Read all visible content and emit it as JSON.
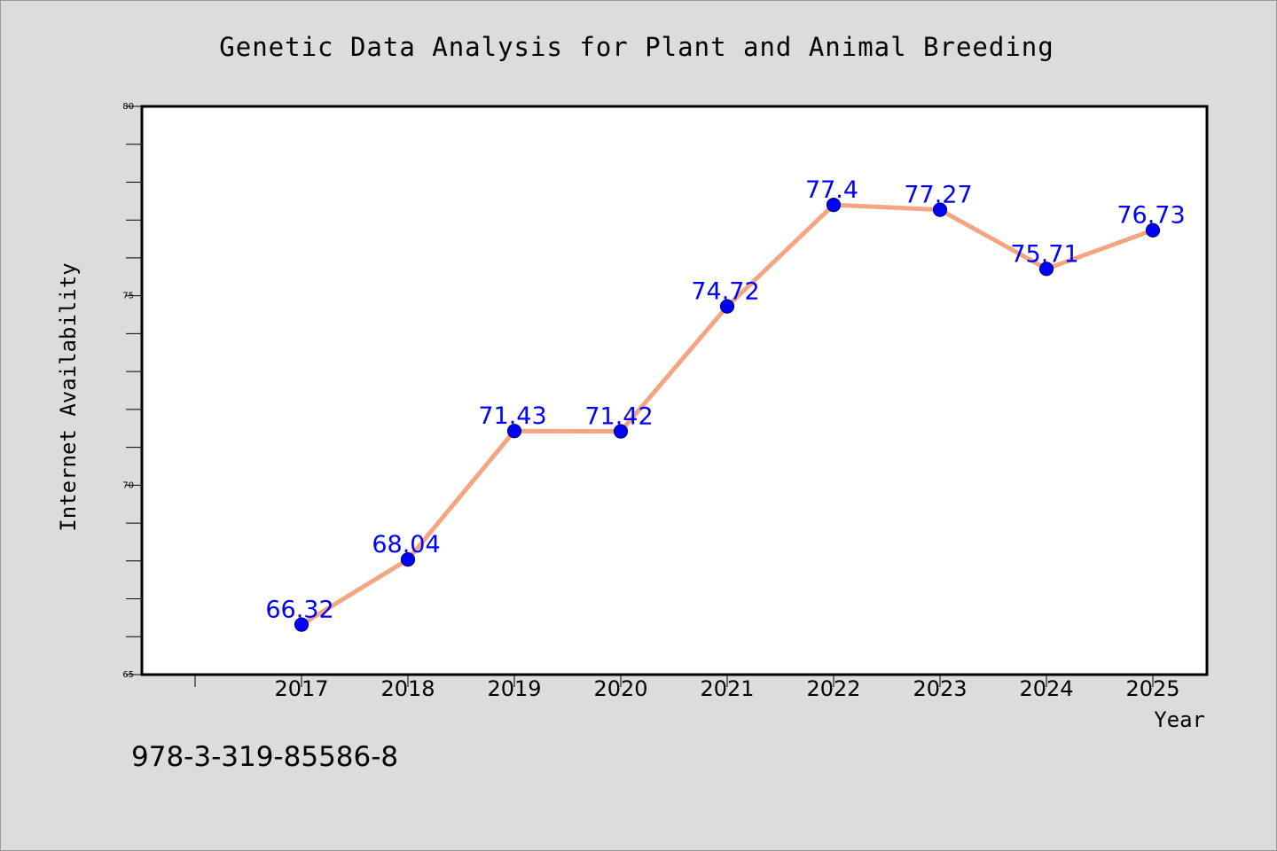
{
  "chart_data": {
    "type": "line",
    "title": "Genetic Data Analysis for Plant and Animal Breeding",
    "xlabel": "Year",
    "ylabel": "Internet Availability",
    "categories": [
      "2017",
      "2018",
      "2019",
      "2020",
      "2021",
      "2022",
      "2023",
      "2024",
      "2025"
    ],
    "series": [
      {
        "values": [
          66.32,
          68.04,
          71.43,
          71.42,
          74.72,
          77.4,
          77.27,
          75.71,
          76.73
        ],
        "labels": [
          "66.32",
          "68.04",
          "71.43",
          "71.42",
          "74.72",
          "77.4",
          "77.27",
          "75.71",
          "76.73"
        ]
      }
    ],
    "ylim": [
      65,
      80
    ],
    "yticks": [
      65,
      70,
      75,
      80
    ],
    "y_minor_step": 1,
    "grid": false,
    "legend": "none",
    "colors": {
      "line": "#f4a582",
      "marker": "#0000ff",
      "marker_edge": "#00007a",
      "data_label": "#0000ff",
      "background": "#dcdcdc",
      "plot_background": "#ffffff"
    }
  },
  "footer": {
    "isbn": "978-3-319-85586-8"
  }
}
